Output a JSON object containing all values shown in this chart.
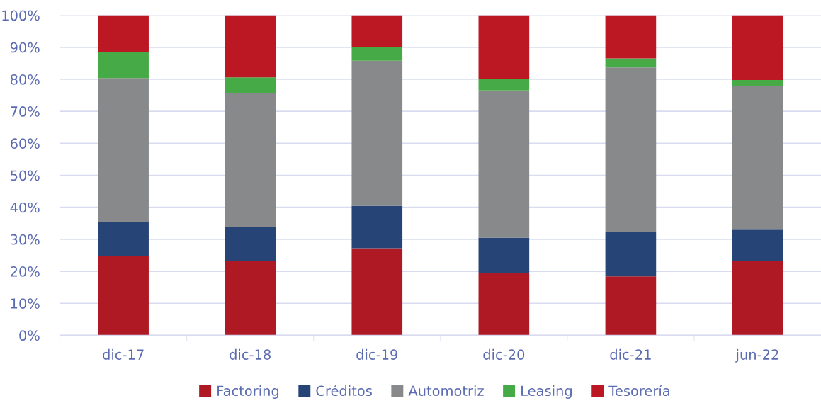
{
  "chart_data": {
    "type": "bar",
    "stacked": true,
    "categories": [
      "dic-17",
      "dic-18",
      "dic-19",
      "dic-20",
      "dic-21",
      "jun-22"
    ],
    "series": [
      {
        "name": "Factoring",
        "color": "#ae1923",
        "values": [
          24.7,
          23.3,
          27.2,
          19.5,
          18.4,
          23.3
        ]
      },
      {
        "name": "Créditos",
        "color": "#264576",
        "values": [
          10.6,
          10.5,
          13.3,
          11.0,
          13.9,
          9.7
        ]
      },
      {
        "name": "Automotriz",
        "color": "#88898b",
        "values": [
          45.1,
          42.0,
          45.3,
          46.0,
          51.4,
          44.9
        ]
      },
      {
        "name": "Leasing",
        "color": "#46aa46",
        "values": [
          8.1,
          4.8,
          4.4,
          3.7,
          2.8,
          1.9
        ]
      },
      {
        "name": "Tesorería",
        "color": "#bb1824",
        "values": [
          11.5,
          19.4,
          9.8,
          19.8,
          13.5,
          20.2
        ]
      }
    ],
    "ylim": [
      0,
      100
    ],
    "yticks": [
      {
        "value": 0,
        "label": "0%"
      },
      {
        "value": 10,
        "label": "10%"
      },
      {
        "value": 20,
        "label": "20%"
      },
      {
        "value": 30,
        "label": "30%"
      },
      {
        "value": 40,
        "label": "40%"
      },
      {
        "value": 50,
        "label": "50%"
      },
      {
        "value": 60,
        "label": "60%"
      },
      {
        "value": 70,
        "label": "70%"
      },
      {
        "value": 80,
        "label": "80%"
      },
      {
        "value": 90,
        "label": "90%"
      },
      {
        "value": 100,
        "label": "100%"
      }
    ],
    "grid": "y",
    "legend": "bottom"
  }
}
